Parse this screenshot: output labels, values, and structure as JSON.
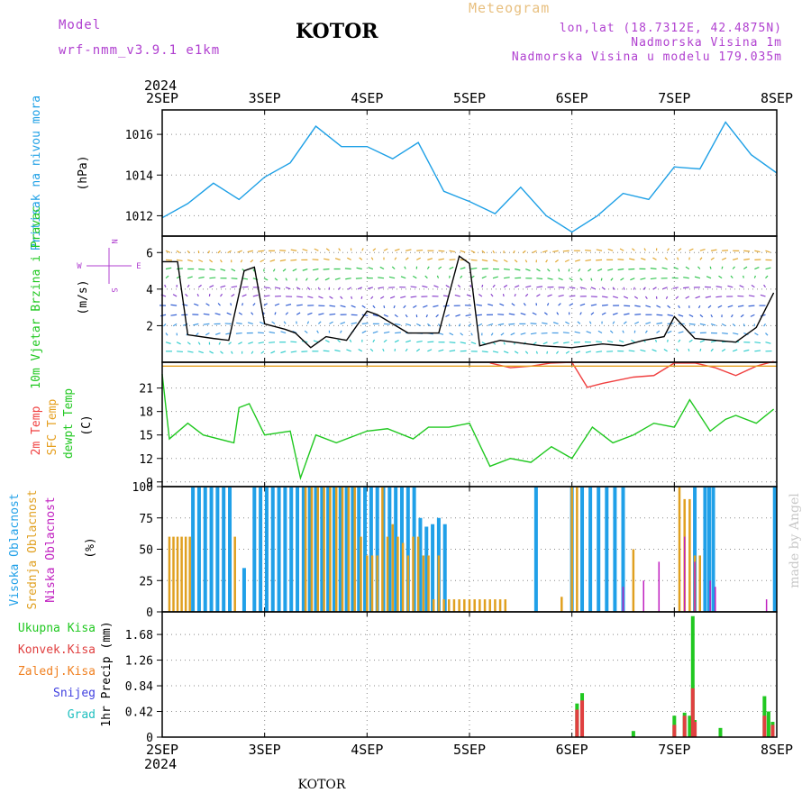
{
  "header": {
    "model_label": "Model",
    "model_name": "wrf-nmm_v3.9.1  e1km",
    "station": "KOTOR",
    "product": "Meteogram",
    "coords": "lon,lat (18.7312E, 42.4875N)",
    "elevation": "Nadmorska Visina 1m",
    "model_elevation": "Nadmorska Visina u modelu 179.035m"
  },
  "footer": {
    "station": "KOTOR"
  },
  "watermark": "made by Angel",
  "time_axis": {
    "year": "2024",
    "labels": [
      "2SEP",
      "3SEP",
      "4SEP",
      "5SEP",
      "6SEP",
      "7SEP",
      "8SEP"
    ]
  },
  "colors": {
    "pressure": "#1ea0e6",
    "speed": "#000000",
    "temp2m": "#f04040",
    "sfc": "#e6a020",
    "dewpt": "#20c820",
    "high": "#20a0e8",
    "mid": "#e0a020",
    "low": "#c020c0",
    "total": "#20c820",
    "conv": "#e04040",
    "frz": "#f08020",
    "snow": "#4040e0",
    "hail": "#20c0c0"
  },
  "chart_data": [
    {
      "type": "line",
      "panel": "pressure",
      "ylabel_side": "Pritisak na nivou mora",
      "unit": "(hPa)",
      "ylim": [
        1011,
        1017.2
      ],
      "yticks": [
        "1012",
        "1014",
        "1016"
      ],
      "series": [
        {
          "name": "Pritisak na nivou mora",
          "x": [
            0,
            0.25,
            0.5,
            0.75,
            1,
            1.25,
            1.5,
            1.75,
            2,
            2.25,
            2.5,
            2.75,
            3,
            3.25,
            3.5,
            3.75,
            4,
            4.25,
            4.5,
            4.75,
            5,
            5.25,
            5.5,
            5.75,
            6
          ],
          "values": [
            1011.9,
            1012.6,
            1013.6,
            1012.8,
            1013.9,
            1014.6,
            1016.4,
            1015.4,
            1015.4,
            1014.8,
            1015.6,
            1013.2,
            1012.7,
            1012.1,
            1013.4,
            1012.0,
            1011.2,
            1012.0,
            1013.1,
            1012.8,
            1014.4,
            1014.3,
            1016.6,
            1015.0,
            1014.1
          ]
        }
      ]
    },
    {
      "type": "line",
      "panel": "wind",
      "ylabel_side": "10m Vjetar Brzina i Pravac",
      "unit": "(m/s)",
      "compass": [
        "N",
        "E",
        "S",
        "W"
      ],
      "ylim": [
        0,
        6.9
      ],
      "yticks": [
        "2",
        "4",
        "6"
      ],
      "series": [
        {
          "name": "10m Vjetar",
          "x": [
            0,
            0.15,
            0.25,
            0.5,
            0.65,
            0.8,
            0.9,
            1.0,
            1.2,
            1.3,
            1.45,
            1.6,
            1.8,
            2.0,
            2.1,
            2.4,
            2.7,
            2.9,
            3.0,
            3.1,
            3.3,
            3.7,
            4.0,
            4.3,
            4.5,
            4.7,
            4.9,
            5.0,
            5.2,
            5.4,
            5.6,
            5.8,
            5.97
          ],
          "values": [
            5.5,
            5.5,
            1.5,
            1.3,
            1.2,
            5.0,
            5.2,
            2.1,
            1.8,
            1.6,
            0.8,
            1.4,
            1.2,
            2.8,
            2.6,
            1.6,
            1.6,
            5.8,
            5.4,
            0.9,
            1.2,
            0.9,
            0.8,
            1.0,
            0.9,
            1.2,
            1.4,
            2.5,
            1.3,
            1.2,
            1.1,
            1.9,
            3.8
          ]
        }
      ]
    },
    {
      "type": "line",
      "panel": "temperature",
      "ylabel_side": [
        "2m Temp",
        "SFC Temp",
        "dewpt Temp"
      ],
      "unit": "(C)",
      "ylim": [
        8.4,
        24.3
      ],
      "yticks": [
        "9",
        "12",
        "15",
        "18",
        "21"
      ],
      "series": [
        {
          "name": "2m Temp",
          "x": [
            3.2,
            3.4,
            3.6,
            3.8,
            4.0,
            4.15,
            4.3,
            4.6,
            4.8,
            5.0,
            5.2,
            5.4,
            5.6,
            5.8,
            5.97
          ],
          "values": [
            24.2,
            23.6,
            23.8,
            24.2,
            24.3,
            21.1,
            21.6,
            22.4,
            22.6,
            24.2,
            24.2,
            23.6,
            22.6,
            23.8,
            24.4
          ]
        },
        {
          "name": "SFC Temp",
          "x": [
            0,
            6
          ],
          "values": [
            23.8,
            23.8
          ]
        },
        {
          "name": "dewpt Temp",
          "x": [
            0,
            0.07,
            0.25,
            0.4,
            0.7,
            0.75,
            0.85,
            1.0,
            1.25,
            1.35,
            1.5,
            1.7,
            2.0,
            2.2,
            2.45,
            2.6,
            2.8,
            3.0,
            3.2,
            3.4,
            3.6,
            3.8,
            4.0,
            4.2,
            4.4,
            4.6,
            4.8,
            5.0,
            5.15,
            5.35,
            5.5,
            5.6,
            5.8,
            5.97
          ],
          "values": [
            22.8,
            14.5,
            16.5,
            15.0,
            14.0,
            18.5,
            19.0,
            15.0,
            15.5,
            9.5,
            15.0,
            14.0,
            15.5,
            15.8,
            14.5,
            16.0,
            16.0,
            16.5,
            11.0,
            12.0,
            11.5,
            13.5,
            12.0,
            16.0,
            14.0,
            15.0,
            16.5,
            16.0,
            19.5,
            15.5,
            17.0,
            17.5,
            16.5,
            18.3
          ]
        }
      ]
    },
    {
      "type": "bar",
      "panel": "clouds",
      "ylabel_side": [
        "Visoka Oblacnost",
        "Srednja Oblacnost",
        "Niska Oblacnost"
      ],
      "unit": "(%)",
      "ylim": [
        0,
        100
      ],
      "yticks": [
        "0",
        "25",
        "50",
        "75",
        "100"
      ],
      "series": [
        {
          "name": "Visoka Oblacnost",
          "x": [
            0.3,
            0.36,
            0.42,
            0.48,
            0.54,
            0.6,
            0.66,
            0.8,
            0.9,
            0.96,
            1.02,
            1.08,
            1.14,
            1.2,
            1.26,
            1.32,
            1.38,
            1.44,
            1.5,
            1.56,
            1.62,
            1.68,
            1.74,
            1.8,
            1.86,
            1.92,
            1.98,
            2.04,
            2.1,
            2.16,
            2.22,
            2.28,
            2.34,
            2.4,
            2.46,
            2.52,
            2.58,
            2.64,
            2.7,
            2.76,
            3.65,
            4.0,
            4.1,
            4.18,
            4.26,
            4.34,
            4.42,
            4.5,
            5.2,
            5.3,
            5.34,
            5.38,
            5.98
          ],
          "values": [
            100,
            100,
            100,
            100,
            100,
            100,
            100,
            35,
            100,
            100,
            100,
            100,
            100,
            100,
            100,
            100,
            100,
            100,
            100,
            100,
            100,
            100,
            100,
            100,
            100,
            100,
            100,
            100,
            100,
            100,
            100,
            100,
            100,
            100,
            100,
            75,
            68,
            70,
            75,
            70,
            100,
            100,
            100,
            100,
            100,
            100,
            100,
            100,
            100,
            100,
            100,
            100,
            100
          ]
        },
        {
          "name": "Srednja Oblacnost",
          "x": [
            0.07,
            0.11,
            0.15,
            0.19,
            0.23,
            0.27,
            0.71,
            1.4,
            1.46,
            1.52,
            1.58,
            1.64,
            1.7,
            1.76,
            1.82,
            1.88,
            1.94,
            2.0,
            2.05,
            2.1,
            2.15,
            2.2,
            2.25,
            2.3,
            2.35,
            2.4,
            2.45,
            2.5,
            2.55,
            2.6,
            2.65,
            2.7,
            2.75,
            2.8,
            2.85,
            2.9,
            2.95,
            3.0,
            3.05,
            3.1,
            3.15,
            3.2,
            3.25,
            3.3,
            3.35,
            3.9,
            4.0,
            4.05,
            4.6,
            5.05,
            5.1,
            5.15,
            5.2,
            5.25
          ],
          "values": [
            60,
            60,
            60,
            60,
            60,
            60,
            60,
            100,
            100,
            100,
            100,
            100,
            100,
            100,
            100,
            100,
            60,
            45,
            45,
            45,
            100,
            60,
            70,
            60,
            55,
            45,
            60,
            60,
            45,
            45,
            10,
            45,
            10,
            10,
            10,
            10,
            10,
            10,
            10,
            10,
            10,
            10,
            10,
            10,
            10,
            12,
            100,
            100,
            50,
            100,
            90,
            90,
            45,
            45
          ]
        },
        {
          "name": "Niska Oblacnost",
          "x": [
            4.5,
            4.7,
            4.85,
            5.1,
            5.2,
            5.35,
            5.4,
            5.9
          ],
          "values": [
            20,
            25,
            40,
            60,
            40,
            25,
            20,
            10
          ]
        }
      ]
    },
    {
      "type": "bar",
      "panel": "precip",
      "ylabel_side": [
        "Ukupna Kisa",
        "Konvek.Kisa",
        "Zaledj.Kisa",
        "Snijeg",
        "Grad"
      ],
      "ylabel_inner": "1hr Precip (mm)",
      "ylim": [
        0,
        2.05
      ],
      "yticks": [
        "0",
        "0.42",
        "0.84",
        "1.26",
        "1.68"
      ],
      "series": [
        {
          "name": "Ukupna Kisa",
          "x": [
            4.05,
            4.1,
            4.6,
            5.0,
            5.1,
            5.15,
            5.18,
            5.2,
            5.45,
            5.88,
            5.92,
            5.96
          ],
          "values": [
            0.55,
            0.72,
            0.1,
            0.35,
            0.4,
            0.35,
            1.98,
            0.28,
            0.15,
            0.67,
            0.42,
            0.25
          ]
        },
        {
          "name": "Konvek.Kisa",
          "x": [
            4.05,
            4.1,
            5.0,
            5.1,
            5.18,
            5.2,
            5.88,
            5.96
          ],
          "values": [
            0.45,
            0.6,
            0.2,
            0.35,
            0.8,
            0.25,
            0.35,
            0.2
          ]
        }
      ]
    }
  ]
}
